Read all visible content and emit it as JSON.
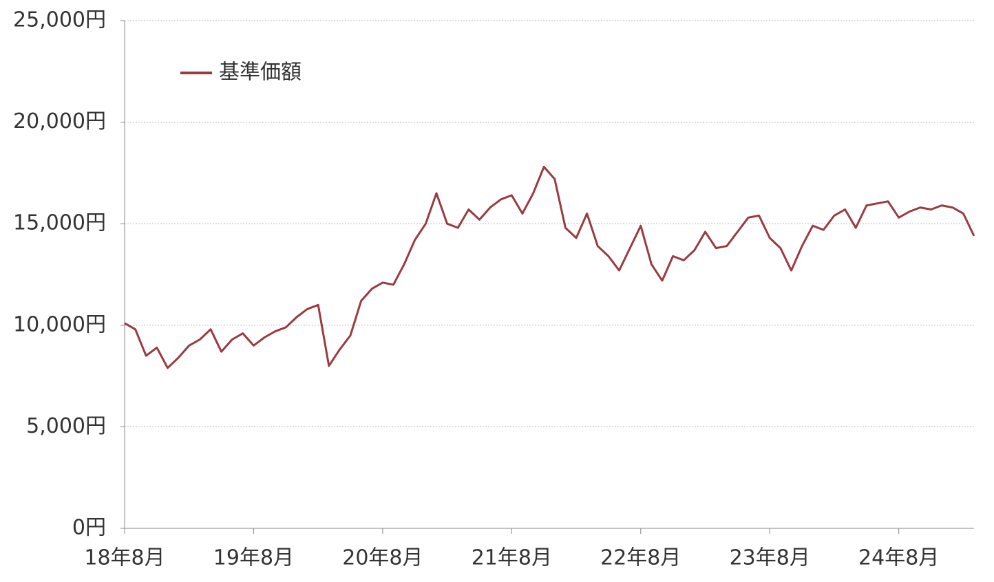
{
  "chart_data": {
    "type": "line",
    "categories": [
      "18年8月",
      null,
      null,
      null,
      null,
      null,
      null,
      null,
      null,
      null,
      null,
      null,
      "19年8月",
      null,
      null,
      null,
      null,
      null,
      null,
      null,
      null,
      null,
      null,
      null,
      "20年8月",
      null,
      null,
      null,
      null,
      null,
      null,
      null,
      null,
      null,
      null,
      null,
      "21年8月",
      null,
      null,
      null,
      null,
      null,
      null,
      null,
      null,
      null,
      null,
      null,
      "22年8月",
      null,
      null,
      null,
      null,
      null,
      null,
      null,
      null,
      null,
      null,
      null,
      "23年8月",
      null,
      null,
      null,
      null,
      null,
      null,
      null,
      null,
      null,
      null,
      null,
      "24年8月",
      null,
      null,
      null,
      null,
      null,
      null,
      null
    ],
    "series": [
      {
        "name": "基準価額",
        "color": "#9b3a40",
        "values": [
          10100,
          9800,
          8500,
          8900,
          7900,
          8400,
          9000,
          9300,
          9800,
          8700,
          9300,
          9600,
          9000,
          9400,
          9700,
          9900,
          10400,
          10800,
          11000,
          8000,
          8800,
          9500,
          11200,
          11800,
          12100,
          12000,
          13000,
          14200,
          15000,
          16500,
          15000,
          14800,
          15700,
          15200,
          15800,
          16200,
          16400,
          15500,
          16500,
          17800,
          17200,
          14800,
          14300,
          15500,
          13900,
          13400,
          12700,
          13800,
          14900,
          13000,
          12200,
          13400,
          13200,
          13700,
          14600,
          13800,
          13900,
          14600,
          15300,
          15400,
          14300,
          13800,
          12700,
          13900,
          14900,
          14700,
          15400,
          15700,
          14800,
          15900,
          16000,
          16100,
          15300,
          15600,
          15800,
          15700,
          15900,
          15800,
          15500,
          14400
        ]
      }
    ],
    "ylim": [
      0,
      25000
    ],
    "yticks": [
      {
        "value": 0,
        "label": "0円"
      },
      {
        "value": 5000,
        "label": "5,000円"
      },
      {
        "value": 10000,
        "label": "10,000円"
      },
      {
        "value": 15000,
        "label": "15,000円"
      },
      {
        "value": 20000,
        "label": "20,000円"
      },
      {
        "value": 25000,
        "label": "25,000円"
      }
    ],
    "grid": true,
    "legend": "top-left"
  }
}
